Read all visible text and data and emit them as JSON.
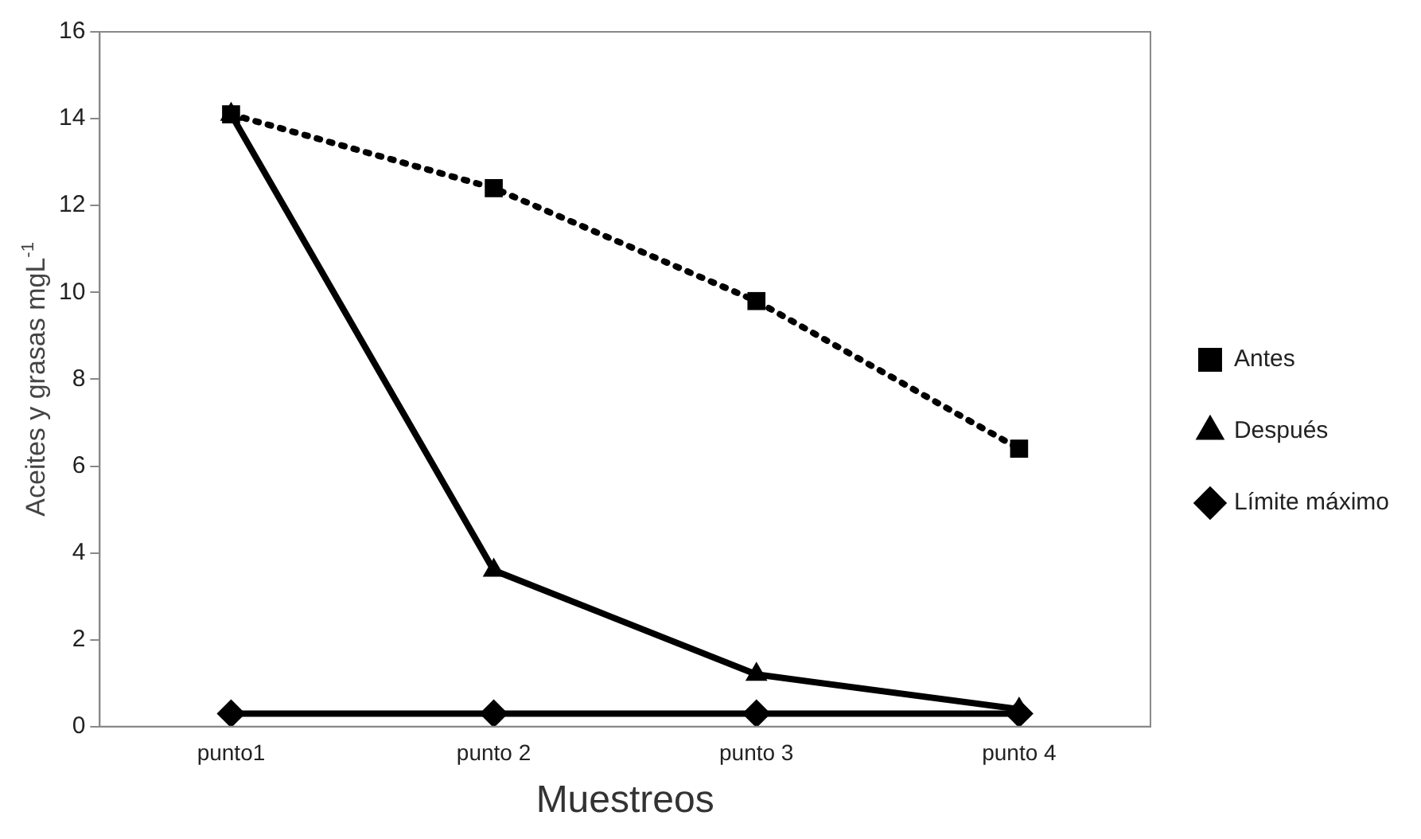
{
  "chart_data": {
    "type": "line",
    "xlabel": "Muestreos",
    "ylabel": "Aceites y grasas mgL$^{-1}$",
    "categories": [
      "punto1",
      "punto 2",
      "punto 3",
      "punto 4"
    ],
    "series": [
      {
        "name": "Antes",
        "color": "#000000",
        "values": [
          14.1,
          12.4,
          9.8,
          6.4
        ],
        "marker": "square",
        "line_style": "dotted"
      },
      {
        "name": "Después",
        "color": "#000000",
        "values": [
          14.1,
          3.6,
          1.2,
          0.4
        ],
        "marker": "triangle",
        "line_style": "solid"
      },
      {
        "name": "Límite máximo",
        "color": "#000000",
        "values": [
          0.3,
          0.3,
          0.3,
          0.3
        ],
        "marker": "diamond",
        "line_style": "solid"
      }
    ],
    "ylim": [
      0,
      16
    ],
    "yticks": [
      0,
      2,
      4,
      6,
      8,
      10,
      12,
      14,
      16
    ],
    "grid": false,
    "legend": "right"
  }
}
